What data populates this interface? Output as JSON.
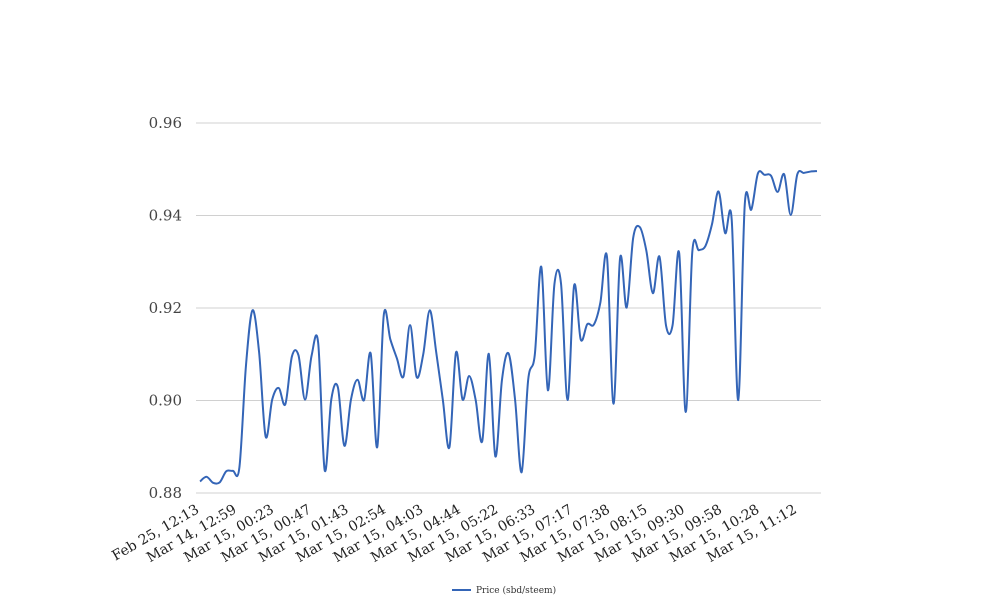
{
  "chart_data": {
    "type": "line",
    "title": "",
    "xlabel": "",
    "ylabel": "",
    "ylim": [
      0.88,
      0.96
    ],
    "y_ticks": [
      "0.88",
      "0.90",
      "0.92",
      "0.94",
      "0.96"
    ],
    "y_tick_values": [
      0.88,
      0.9,
      0.92,
      0.94,
      0.96
    ],
    "x_tick_labels": [
      "Feb 25, 12:13",
      "Mar 14, 12:59",
      "Mar 15, 00:23",
      "Mar 15, 00:47",
      "Mar 15, 01:43",
      "Mar 15, 02:54",
      "Mar 15, 04:03",
      "Mar 15, 04:44",
      "Mar 15, 05:22",
      "Mar 15, 06:33",
      "Mar 15, 07:17",
      "Mar 15, 07:38",
      "Mar 15, 08:15",
      "Mar 15, 09:30",
      "Mar 15, 09:58",
      "Mar 15, 10:28",
      "Mar 15, 11:12"
    ],
    "grid": true,
    "legend_position": "bottom-center",
    "series": [
      {
        "name": "Price (sbd/steem)",
        "color": "#3465b7",
        "values": [
          0.8825,
          0.8835,
          0.8822,
          0.8823,
          0.8847,
          0.8848,
          0.8855,
          0.9075,
          0.9195,
          0.9105,
          0.8922,
          0.9002,
          0.9027,
          0.8992,
          0.9095,
          0.9098,
          0.9002,
          0.9097,
          0.9125,
          0.8849,
          0.9002,
          0.9029,
          0.8902,
          0.9002,
          0.9045,
          0.9001,
          0.9102,
          0.8899,
          0.9185,
          0.9132,
          0.9091,
          0.9052,
          0.9163,
          0.9051,
          0.9099,
          0.9195,
          0.9103,
          0.9001,
          0.8899,
          0.9104,
          0.9002,
          0.9053,
          0.9001,
          0.8912,
          0.9101,
          0.8879,
          0.9044,
          0.9102,
          0.9002,
          0.8845,
          0.9045,
          0.9098,
          0.9289,
          0.9022,
          0.9252,
          0.9253,
          0.9001,
          0.9249,
          0.9132,
          0.9165,
          0.9164,
          0.9212,
          0.9311,
          0.8993,
          0.9308,
          0.9201,
          0.9352,
          0.9375,
          0.9324,
          0.9232,
          0.9311,
          0.9162,
          0.9163,
          0.9319,
          0.8975,
          0.9321,
          0.9325,
          0.9334,
          0.9381,
          0.9452,
          0.9362,
          0.9392,
          0.9001,
          0.9425,
          0.9413,
          0.9491,
          0.9488,
          0.9486,
          0.9451,
          0.9489,
          0.9401,
          0.9489,
          0.9492,
          0.9495,
          0.9496
        ]
      }
    ]
  }
}
